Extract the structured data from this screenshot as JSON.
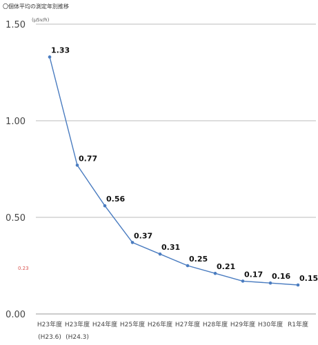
{
  "chart_data": {
    "type": "line",
    "title": "〇個体平均の測定年別推移",
    "unit_label": "(μSv/h)",
    "categories": [
      "H23年度",
      "H23年度",
      "H24年度",
      "H25年度",
      "H26年度",
      "H27年度",
      "H28年度",
      "H29年度",
      "H30年度",
      "R1年度"
    ],
    "category_sublabels": [
      "(H23.6)",
      "(H24.3)",
      "",
      "",
      "",
      "",
      "",
      "",
      "",
      ""
    ],
    "values": [
      1.33,
      0.77,
      0.56,
      0.37,
      0.31,
      0.25,
      0.21,
      0.17,
      0.16,
      0.15
    ],
    "value_labels": [
      "1.33",
      "0.77",
      "0.56",
      "0.37",
      "0.31",
      "0.25",
      "0.21",
      "0.17",
      "0.16",
      "0.15"
    ],
    "yticks": [
      "0.00",
      "0.50",
      "1.00",
      "1.50"
    ],
    "ylim": [
      0,
      1.5
    ],
    "reference_label": "0.23",
    "line_color": "#4a7cc0",
    "grid": true,
    "legend": "none"
  }
}
